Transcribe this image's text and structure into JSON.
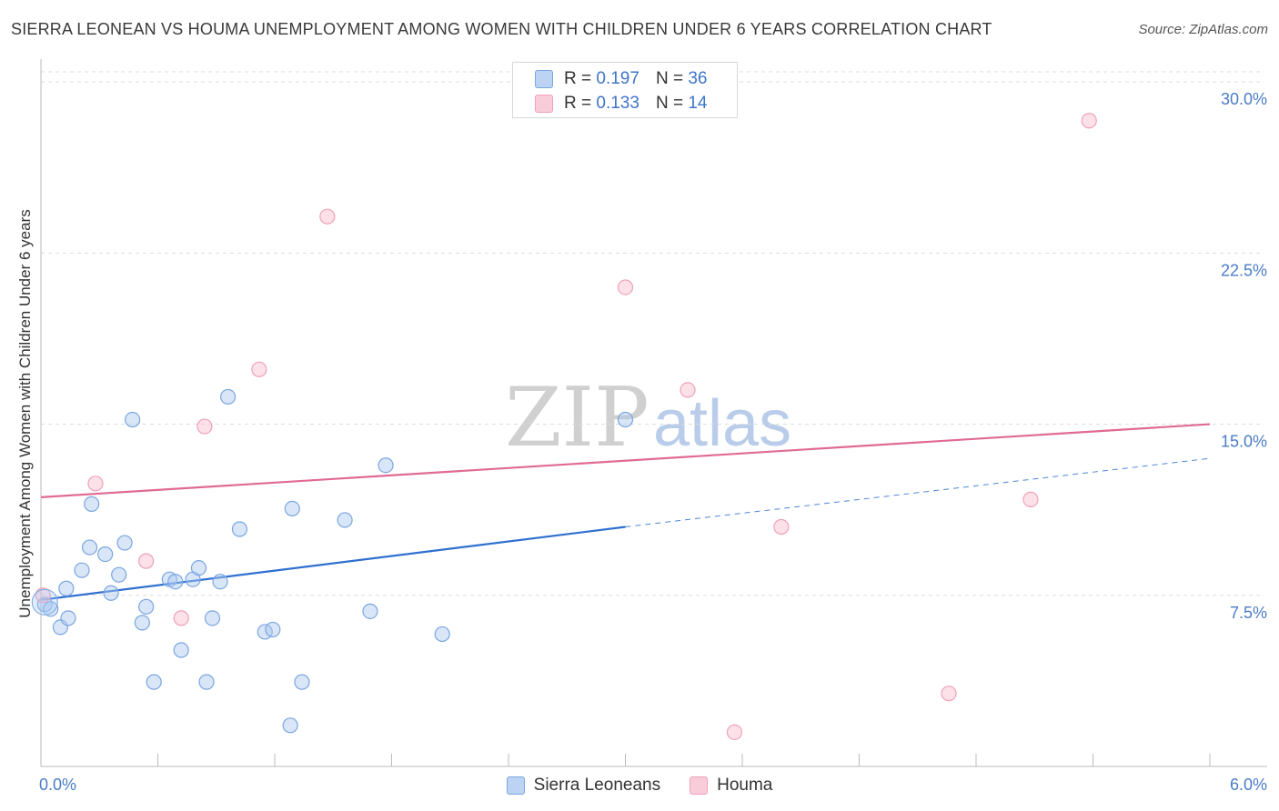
{
  "title": "SIERRA LEONEAN VS HOUMA UNEMPLOYMENT AMONG WOMEN WITH CHILDREN UNDER 6 YEARS CORRELATION CHART",
  "source": "Source: ZipAtlas.com",
  "watermark": {
    "zip": "ZIP",
    "atlas": "atlas"
  },
  "legend_top": [
    {
      "r_label": "R =",
      "r_value": "0.197",
      "n_label": "N =",
      "n_value": "36",
      "color": "#7aa6e0"
    },
    {
      "r_label": "R =",
      "r_value": "0.133",
      "n_label": "N =",
      "n_value": "14",
      "color": "#f0a0b8"
    }
  ],
  "legend_bottom": [
    "Sierra Leoneans",
    "Houma"
  ],
  "chart_data": {
    "type": "scatter",
    "title": "SIERRA LEONEAN VS HOUMA UNEMPLOYMENT AMONG WOMEN WITH CHILDREN UNDER 6 YEARS CORRELATION CHART",
    "xlabel": "",
    "ylabel": "Unemployment Among Women with Children Under 6 years",
    "xlim": [
      0,
      6
    ],
    "ylim": [
      0,
      31
    ],
    "x_tick_labels": [
      {
        "value": 0,
        "label": "0.0%"
      },
      {
        "value": 6,
        "label": "6.0%"
      }
    ],
    "y_tick_labels": [
      {
        "value": 7.5,
        "label": "7.5%"
      },
      {
        "value": 15,
        "label": "15.0%"
      },
      {
        "value": 22.5,
        "label": "22.5%"
      },
      {
        "value": 30,
        "label": "30.0%"
      }
    ],
    "series": [
      {
        "name": "Sierra Leoneans",
        "color": "#7aa6e0",
        "fill": "rgba(170,200,240,0.45)",
        "points": [
          [
            0.02,
            7.1
          ],
          [
            0.05,
            6.9
          ],
          [
            0.1,
            6.1
          ],
          [
            0.14,
            6.5
          ],
          [
            0.13,
            7.8
          ],
          [
            0.21,
            8.6
          ],
          [
            0.25,
            9.6
          ],
          [
            0.33,
            9.3
          ],
          [
            0.36,
            7.6
          ],
          [
            0.4,
            8.4
          ],
          [
            0.26,
            11.5
          ],
          [
            0.43,
            9.8
          ],
          [
            0.47,
            15.2
          ],
          [
            0.52,
            6.3
          ],
          [
            0.54,
            7.0
          ],
          [
            0.66,
            8.2
          ],
          [
            0.69,
            8.1
          ],
          [
            0.78,
            8.2
          ],
          [
            0.81,
            8.7
          ],
          [
            0.92,
            8.1
          ],
          [
            0.58,
            3.7
          ],
          [
            0.72,
            5.1
          ],
          [
            0.85,
            3.7
          ],
          [
            0.88,
            6.5
          ],
          [
            0.96,
            16.2
          ],
          [
            1.02,
            10.4
          ],
          [
            1.15,
            5.9
          ],
          [
            1.19,
            6.0
          ],
          [
            1.29,
            11.3
          ],
          [
            1.28,
            1.8
          ],
          [
            1.34,
            3.7
          ],
          [
            1.56,
            10.8
          ],
          [
            1.69,
            6.8
          ],
          [
            1.77,
            13.2
          ],
          [
            2.06,
            5.8
          ],
          [
            3.0,
            15.2
          ]
        ],
        "trend_solid": {
          "x": [
            0.0,
            3.0
          ],
          "y": [
            7.3,
            10.5
          ]
        },
        "trend_dashed": {
          "x": [
            3.0,
            6.0
          ],
          "y": [
            10.5,
            13.5
          ]
        }
      },
      {
        "name": "Houma",
        "color": "#f0a0b8",
        "fill": "rgba(248,190,205,0.45)",
        "points": [
          [
            0.01,
            7.5
          ],
          [
            0.28,
            12.4
          ],
          [
            0.54,
            9.0
          ],
          [
            0.72,
            6.5
          ],
          [
            0.84,
            14.9
          ],
          [
            1.12,
            17.4
          ],
          [
            1.47,
            24.1
          ],
          [
            3.0,
            21.0
          ],
          [
            3.32,
            16.5
          ],
          [
            3.56,
            1.5
          ],
          [
            3.8,
            10.5
          ],
          [
            4.66,
            3.2
          ],
          [
            5.08,
            11.7
          ],
          [
            5.38,
            28.3
          ]
        ],
        "trend_solid": {
          "x": [
            0.0,
            6.0
          ],
          "y": [
            11.8,
            15.0
          ]
        }
      }
    ]
  }
}
